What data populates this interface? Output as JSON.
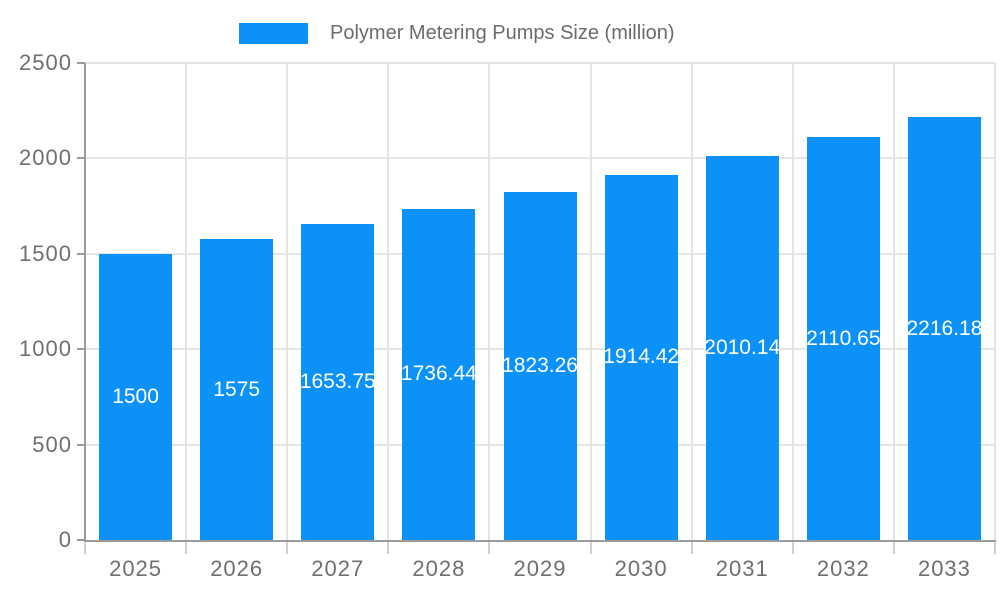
{
  "chart_data": {
    "type": "bar",
    "title": "Polymer Metering Pumps Size (million)",
    "legend_position": "top-center",
    "categories": [
      "2025",
      "2026",
      "2027",
      "2028",
      "2029",
      "2030",
      "2031",
      "2032",
      "2033"
    ],
    "values": [
      1500,
      1575,
      1653.75,
      1736.44,
      1823.26,
      1914.42,
      2010.14,
      2110.65,
      2216.18
    ],
    "value_labels": [
      "1500",
      "1575",
      "1653.75",
      "1736.44",
      "1823.26",
      "1914.42",
      "2010.14",
      "2110.65",
      "2216.18"
    ],
    "xlabel": "",
    "ylabel": "",
    "ylim": [
      0,
      2500
    ],
    "y_ticks": [
      0,
      500,
      1000,
      1500,
      2000,
      2500
    ],
    "grid": true,
    "colors": {
      "bar": "#0B91F7",
      "grid": "#E4E4E4",
      "axis": "#9A9A9A",
      "boundary_tick": "#CFCFCF",
      "tick_label": "#6F6F6F",
      "legend_text": "#6B6B6B",
      "value_label": "#FFFFFF",
      "background": "#FFFFFF"
    }
  }
}
